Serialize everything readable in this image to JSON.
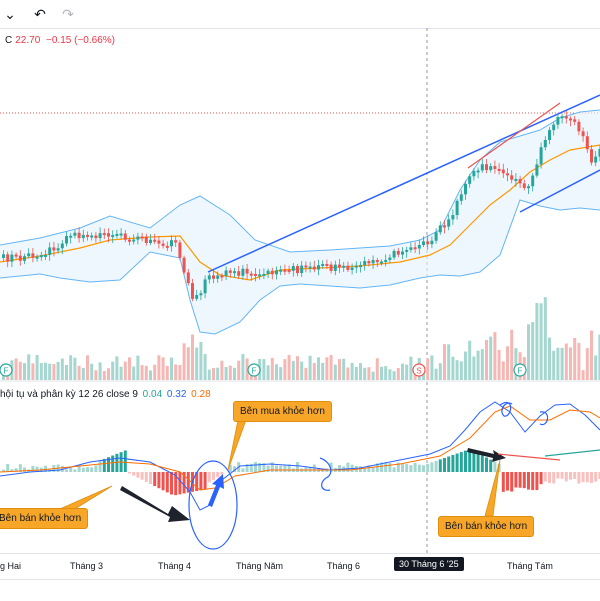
{
  "toolbar": {
    "dropdown_icon": "chevron-down-icon",
    "undo_icon": "undo-icon",
    "redo_icon": "redo-icon"
  },
  "legend": {
    "close_label": "C",
    "close_value": "22.70",
    "change": "−0.15 (−0.66%)"
  },
  "indicator": {
    "name": "hội tụ và phân kỳ",
    "params": "12 26 close 9",
    "histogram_value": "0.04",
    "macd_value": "0.32",
    "signal_value": "0.28"
  },
  "annotations": {
    "buyers_stronger": "Bên mua khỏe hơn",
    "sellers_stronger_left": "Bên bán khỏe hơn",
    "sellers_stronger_right": "Bên bán khỏe hơn"
  },
  "event_markers": [
    "F",
    "F",
    "S",
    "F"
  ],
  "time_axis": {
    "ticks": [
      "g Hai",
      "Tháng 3",
      "Tháng 4",
      "Tháng Năm",
      "Tháng 6",
      "Tháng Tám"
    ],
    "current": "30 Tháng 6 '25"
  },
  "colors": {
    "up": "#26a69a",
    "down": "#ef5350",
    "bollinger": "#2196f3",
    "ma": "#ff9800",
    "trendline": "#2962ff",
    "annotation_fill": "#f7a628",
    "macd_line": "#2962ff",
    "signal_line": "#ff6d00"
  }
}
